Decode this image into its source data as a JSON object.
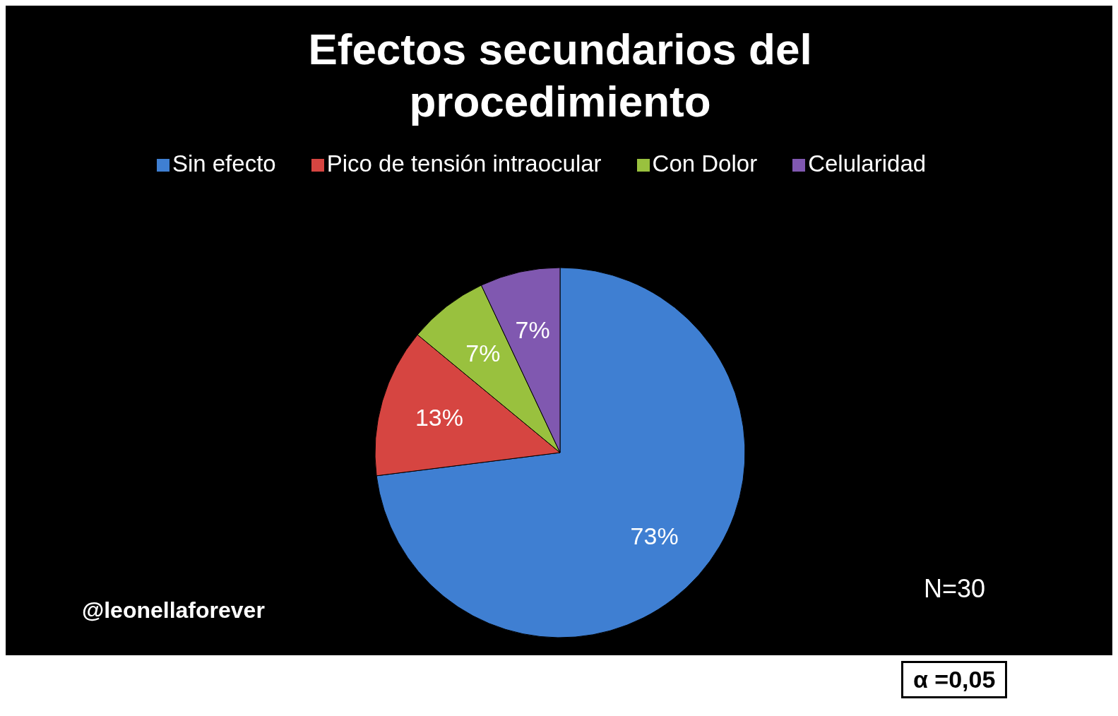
{
  "chart_data": {
    "type": "pie",
    "title": "Efectos secundarios del procedimiento",
    "categories": [
      "Sin efecto",
      "Pico de tensión intraocular",
      "Con Dolor",
      "Celularidad"
    ],
    "values": [
      73,
      13,
      7,
      7
    ],
    "colors": [
      "#3f7fd2",
      "#d64541",
      "#99c13e",
      "#8058b0"
    ],
    "value_labels": [
      "73%",
      "13%",
      "7%",
      "7%"
    ],
    "legend": "top",
    "annotations": [
      "N=30",
      "@leonellaforever",
      "α =0,05"
    ]
  }
}
